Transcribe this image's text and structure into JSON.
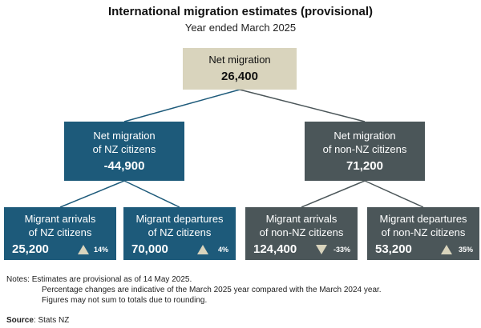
{
  "title": "International migration estimates (provisional)",
  "subtitle": "Year ended March 2025",
  "root": {
    "label": "Net migration",
    "value": "26,400"
  },
  "nz": {
    "label_line1": "Net migration",
    "label_line2": "of NZ citizens",
    "value": "-44,900",
    "arrivals": {
      "line1": "Migrant arrivals",
      "line2": "of NZ citizens",
      "value": "25,200",
      "direction": "up",
      "change": "14%"
    },
    "departures": {
      "line1": "Migrant departures",
      "line2": "of NZ citizens",
      "value": "70,000",
      "direction": "up",
      "change": "4%"
    }
  },
  "non_nz": {
    "label_line1": "Net migration",
    "label_line2": "of non-NZ citizens",
    "value": "71,200",
    "arrivals": {
      "line1": "Migrant arrivals",
      "line2": "of non-NZ citizens",
      "value": "124,400",
      "direction": "down",
      "change": "-33%"
    },
    "departures": {
      "line1": "Migrant departures",
      "line2": "of non-NZ citizens",
      "value": "53,200",
      "direction": "up",
      "change": "35%"
    }
  },
  "notes": {
    "label": "Notes:",
    "line1": "Estimates are provisional as of 14 May 2025.",
    "line2": "Percentage changes are indicative of the March 2025 year compared with the March 2024 year.",
    "line3": "Figures may not sum to totals due to rounding."
  },
  "source": {
    "label": "Source",
    "text": "Stats NZ"
  },
  "colors": {
    "nz_box": "#1d5a7a",
    "non_nz_box": "#4b5659",
    "root_box": "#d9d4bd",
    "change_marker": "#d9d4bd"
  }
}
